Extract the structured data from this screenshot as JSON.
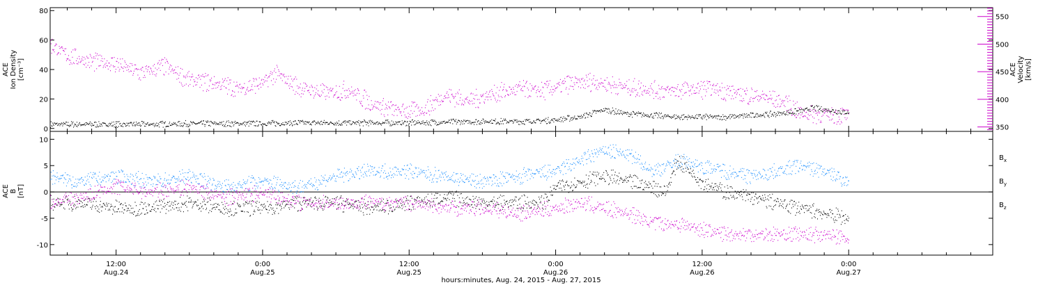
{
  "xaxis": {
    "title": "hours:minutes, Aug. 24, 2015 - Aug. 27, 2015",
    "ticks": [
      {
        "t": 12,
        "time": "12:00",
        "date": "Aug.24"
      },
      {
        "t": 24,
        "time": "0:00",
        "date": "Aug.25"
      },
      {
        "t": 36,
        "time": "12:00",
        "date": "Aug.25"
      },
      {
        "t": 48,
        "time": "0:00",
        "date": "Aug.26"
      },
      {
        "t": 60,
        "time": "12:00",
        "date": "Aug.26"
      },
      {
        "t": 72,
        "time": "0:00",
        "date": "Aug.27"
      }
    ],
    "range_hours": [
      6.6,
      83.8
    ]
  },
  "chart_data": [
    {
      "type": "scatter",
      "panel": "top",
      "y_left": {
        "label_lines": [
          "ACE",
          "Ion Density",
          "[cm⁻³]"
        ],
        "ticks": [
          0,
          20,
          40,
          60,
          80
        ],
        "ylim": [
          -2,
          82
        ]
      },
      "y_right": {
        "label_lines": [
          "ACE",
          "Velocity",
          "[km/s]"
        ],
        "ticks": [
          350,
          400,
          450,
          500,
          550
        ],
        "ylim": [
          342,
          566
        ],
        "color": "#cc00cc"
      },
      "series": [
        {
          "key": "density",
          "color": "#000000",
          "axis": "left",
          "x_hours": [
            6.6,
            9,
            12,
            15,
            18,
            21,
            24,
            27,
            30,
            33,
            36,
            39,
            42,
            44,
            46,
            48,
            50,
            52,
            54,
            56,
            58,
            60,
            62,
            64,
            66,
            68,
            69,
            70,
            72
          ],
          "values": [
            3,
            3,
            3,
            3,
            3.5,
            3.5,
            3.5,
            4,
            4,
            4,
            4,
            4.5,
            5,
            5,
            5,
            6,
            8,
            13,
            10,
            9,
            8,
            8,
            8,
            9,
            10,
            12,
            14,
            13,
            11
          ]
        },
        {
          "key": "velocity",
          "color": "#cc00cc",
          "axis": "right",
          "x_hours": [
            6.6,
            8,
            10,
            12,
            14,
            16,
            18,
            20,
            22,
            24,
            25,
            27,
            29,
            31,
            33,
            35,
            37,
            39,
            41,
            43,
            45,
            47,
            49,
            51,
            53,
            55,
            57,
            59,
            61,
            63,
            65,
            67,
            68,
            70,
            72
          ],
          "values": [
            500,
            480,
            468,
            465,
            448,
            460,
            435,
            430,
            420,
            430,
            447,
            422,
            412,
            418,
            392,
            380,
            380,
            408,
            398,
            412,
            418,
            416,
            428,
            433,
            425,
            420,
            416,
            418,
            420,
            410,
            405,
            393,
            375,
            373,
            372
          ]
        }
      ]
    },
    {
      "type": "scatter",
      "panel": "bottom",
      "y_left": {
        "label_lines": [
          "ACE",
          "B",
          "[nT]"
        ],
        "ticks": [
          -10,
          -5,
          0,
          5,
          10
        ],
        "ylim": [
          -12,
          11.5
        ]
      },
      "zero_line": true,
      "series": [
        {
          "key": "bx",
          "name": "Bx",
          "color": "#000000",
          "x_hours": [
            6.6,
            9,
            12,
            15,
            18,
            21,
            24,
            27,
            30,
            33,
            36,
            39,
            42,
            45,
            47,
            48,
            50,
            52,
            54,
            56,
            57,
            58,
            59,
            60,
            62,
            64,
            66,
            68,
            70,
            72
          ],
          "values": [
            -2,
            -2,
            -3,
            -3,
            -2,
            -3,
            -3,
            -2,
            -2,
            -3,
            -2,
            -1,
            -2,
            -2,
            -2,
            1,
            2,
            3,
            2,
            1,
            0,
            6,
            4,
            2,
            0,
            -1,
            -2,
            -3,
            -4,
            -5
          ]
        },
        {
          "key": "by",
          "name": "By",
          "color": "#1e90ff",
          "x_hours": [
            6.6,
            9,
            12,
            15,
            18,
            21,
            24,
            27,
            30,
            33,
            36,
            39,
            42,
            45,
            48,
            50,
            52,
            54,
            56,
            58,
            60,
            62,
            64,
            66,
            68,
            70,
            72
          ],
          "values": [
            3,
            2,
            3,
            2,
            3,
            1,
            2,
            1,
            3,
            4,
            4,
            3,
            2,
            3,
            4,
            6,
            8,
            7,
            4,
            6,
            5,
            4,
            3,
            4,
            5,
            4,
            2
          ]
        },
        {
          "key": "bz",
          "name": "Bz",
          "color": "#cc00cc",
          "x_hours": [
            6.6,
            9,
            12,
            15,
            18,
            21,
            24,
            27,
            30,
            33,
            36,
            39,
            42,
            45,
            48,
            50,
            52,
            54,
            56,
            58,
            60,
            62,
            64,
            66,
            68,
            70,
            72
          ],
          "values": [
            -2,
            -1,
            1,
            0,
            1,
            -1,
            0,
            -2,
            -2,
            -2,
            -2,
            -3,
            -3,
            -4,
            -3,
            -2,
            -3,
            -4,
            -6,
            -6,
            -7,
            -8,
            -8,
            -8,
            -8,
            -8,
            -9
          ]
        }
      ],
      "legend": [
        {
          "text": "B",
          "sub": "x",
          "color": "#000000"
        },
        {
          "text": "B",
          "sub": "y",
          "color": "#1e90ff"
        },
        {
          "text": "B",
          "sub": "z",
          "color": "#cc00cc"
        }
      ]
    }
  ]
}
